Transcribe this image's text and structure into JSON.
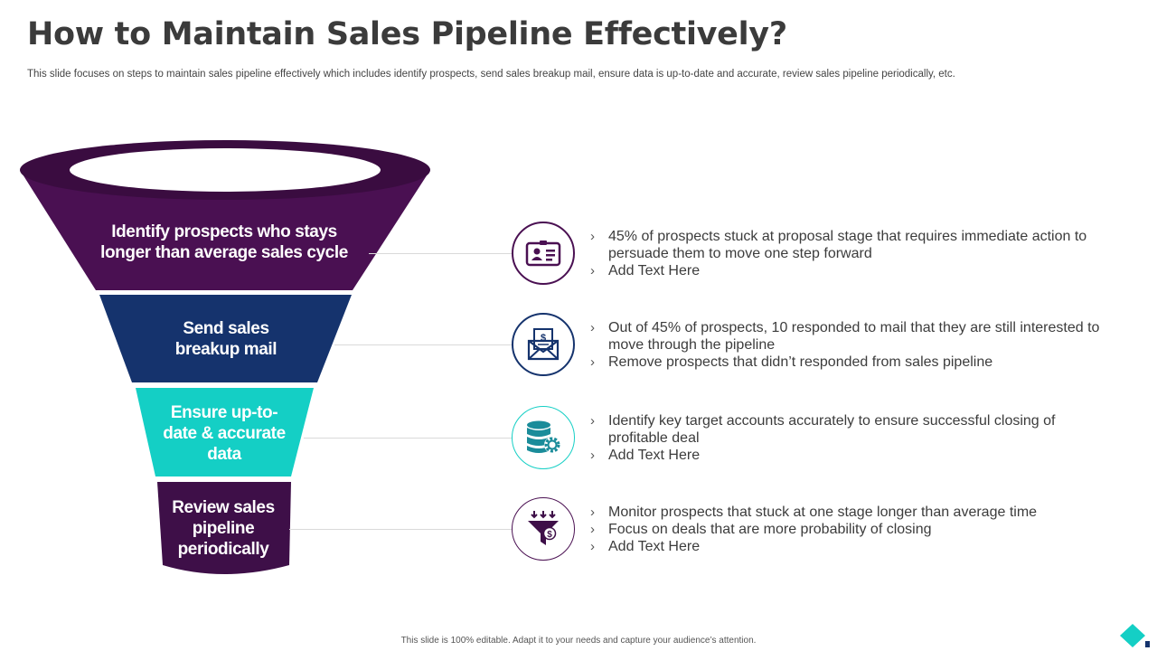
{
  "slide": {
    "title": "How to Maintain Sales Pipeline Effectively?",
    "subtitle": "This slide focuses on steps to maintain sales pipeline effectively which includes identify prospects, send sales breakup mail, ensure data is up-to-date and accurate, review sales pipeline periodically, etc.",
    "footer": "This slide is 100% editable.  Adapt it to your needs and capture your audience’s attention."
  },
  "colors": {
    "stage_1": "#4a1052",
    "stage_2": "#15336d",
    "stage_3": "#14cfc5",
    "stage_4": "#3e0f48",
    "funnel_rim": "#3a0c40"
  },
  "stages": [
    {
      "line_1": "Identify prospects who stays",
      "line_2": "longer than average sales cycle",
      "line_3": "",
      "icon": "id-card-icon",
      "bullets": [
        "45% of prospects stuck at proposal stage that requires immediate action to persuade them to move one step forward",
        "Add Text Here"
      ]
    },
    {
      "line_1": "Send sales",
      "line_2": "breakup mail",
      "line_3": "",
      "icon": "dollar-envelope-icon",
      "bullets": [
        "Out of 45% of prospects, 10 responded to mail that they are still interested to move through the pipeline",
        "Remove prospects that didn’t responded from sales pipeline"
      ]
    },
    {
      "line_1": "Ensure up-to-",
      "line_2": "date & accurate",
      "line_3": "data",
      "icon": "database-gear-icon",
      "bullets": [
        "Identify  key target accounts accurately to ensure successful closing of profitable deal",
        "Add Text Here"
      ]
    },
    {
      "line_1": "Review sales",
      "line_2": "pipeline",
      "line_3": "periodically",
      "icon": "dollar-funnel-icon",
      "bullets": [
        "Monitor prospects that stuck at one stage longer than average time",
        "Focus on deals that are more probability of closing",
        "Add Text Here"
      ]
    }
  ]
}
